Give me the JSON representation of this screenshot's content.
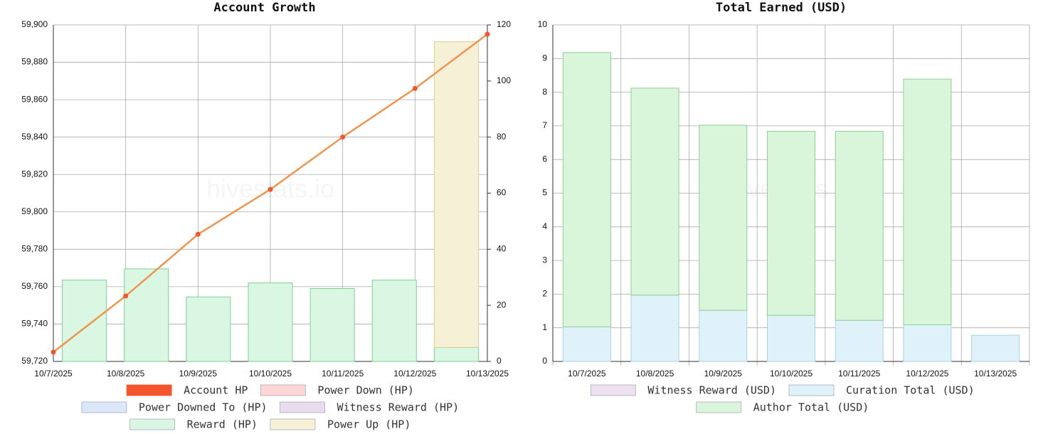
{
  "chart_data": [
    {
      "type": "combo",
      "title": "Account Growth",
      "watermark": "hivestats.io",
      "categories": [
        "10/7/2025",
        "10/8/2025",
        "10/9/2025",
        "10/10/2025",
        "10/11/2025",
        "10/12/2025",
        "10/13/2025"
      ],
      "ylim": [
        59720,
        59900
      ],
      "yticks": [
        {
          "value": 59720,
          "label": "59,720"
        },
        {
          "value": 59740,
          "label": "59,740"
        },
        {
          "value": 59760,
          "label": "59,760"
        },
        {
          "value": 59780,
          "label": "59,780"
        },
        {
          "value": 59800,
          "label": "59,800"
        },
        {
          "value": 59820,
          "label": "59,820"
        },
        {
          "value": 59840,
          "label": "59,840"
        },
        {
          "value": 59860,
          "label": "59,860"
        },
        {
          "value": 59880,
          "label": "59,880"
        },
        {
          "value": 59900,
          "label": "59,900"
        }
      ],
      "y2lim": [
        0,
        120
      ],
      "y2ticks": [
        0,
        20,
        40,
        60,
        80,
        100,
        120
      ],
      "grid": true,
      "stacked": true,
      "series": [
        {
          "name": "Account HP",
          "color": "#f4552d",
          "type": "line",
          "values": [
            59725,
            59755,
            59788,
            59812,
            59840,
            59866,
            59895
          ]
        },
        {
          "name": "Power Down (HP)",
          "color": "#ffd6d6"
        },
        {
          "name": "Power Downed To (HP)",
          "color": "#dbe8fb"
        },
        {
          "name": "Witness Reward (HP)",
          "color": "#e8dcee"
        },
        {
          "name": "Reward (HP)",
          "color": "#d9f7e3",
          "type": "bar",
          "axis": "y2",
          "values": [
            29,
            33,
            23,
            28,
            26,
            29,
            5
          ]
        },
        {
          "name": "Power Up (HP)",
          "color": "#f6f1d6",
          "type": "bar",
          "axis": "y2",
          "values": [
            null,
            null,
            null,
            null,
            null,
            null,
            109
          ]
        }
      ]
    },
    {
      "type": "bar",
      "title": "Total Earned (USD)",
      "watermark": "hivestats.io",
      "categories": [
        "10/7/2025",
        "10/8/2025",
        "10/9/2025",
        "10/10/2025",
        "10/11/2025",
        "10/12/2025",
        "10/13/2025"
      ],
      "ylim": [
        0,
        10
      ],
      "yticks": [
        0,
        1,
        2,
        3,
        4,
        5,
        6,
        7,
        8,
        9,
        10
      ],
      "grid": true,
      "stacked": true,
      "series": [
        {
          "name": "Witness Reward (USD)",
          "color": "#ede0ef"
        },
        {
          "name": "Curation Total (USD)",
          "color": "#dff1f9",
          "type": "bar",
          "values": [
            1.03,
            1.97,
            1.52,
            1.37,
            1.22,
            1.09,
            0.78
          ]
        },
        {
          "name": "Author Total (USD)",
          "color": "#d9f5da",
          "type": "bar",
          "values": [
            8.15,
            6.15,
            5.5,
            5.47,
            5.62,
            7.3,
            null
          ]
        }
      ]
    }
  ]
}
